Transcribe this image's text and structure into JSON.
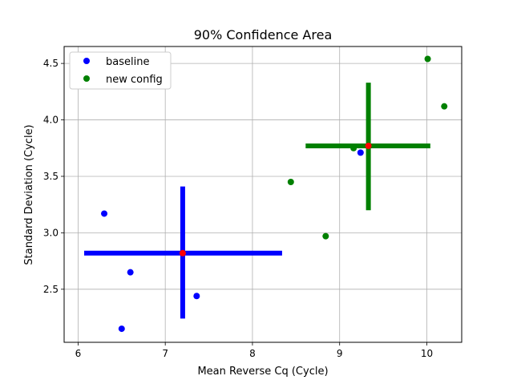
{
  "chart_data": {
    "type": "scatter",
    "title": "90% Confidence Area",
    "xlabel": "Mean Reverse Cq (Cycle)",
    "ylabel": "Standard Deviation (Cycle)",
    "xlim": [
      5.84,
      10.4
    ],
    "ylim": [
      2.03,
      4.65
    ],
    "xticks": [
      6,
      7,
      8,
      9,
      10
    ],
    "yticks": [
      2.5,
      3.0,
      3.5,
      4.0,
      4.5
    ],
    "xtick_labels": [
      "6",
      "7",
      "8",
      "9",
      "10"
    ],
    "ytick_labels": [
      "2.5",
      "3.0",
      "3.5",
      "4.0",
      "4.5"
    ],
    "grid": true,
    "legend_placement": "top-left",
    "series": [
      {
        "name": "baseline",
        "color": "#0000ff",
        "points": [
          {
            "x": 6.3,
            "y": 3.17
          },
          {
            "x": 6.6,
            "y": 2.65
          },
          {
            "x": 6.5,
            "y": 2.15
          },
          {
            "x": 7.36,
            "y": 2.44
          },
          {
            "x": 9.24,
            "y": 3.71
          }
        ],
        "center": {
          "x": 7.2,
          "y": 2.82
        },
        "x_interval": [
          6.07,
          8.34
        ],
        "y_interval": [
          2.24,
          3.41
        ]
      },
      {
        "name": "new config",
        "color": "#008000",
        "points": [
          {
            "x": 8.44,
            "y": 3.45
          },
          {
            "x": 8.84,
            "y": 2.97
          },
          {
            "x": 9.16,
            "y": 3.75
          },
          {
            "x": 10.01,
            "y": 4.54
          },
          {
            "x": 10.2,
            "y": 4.12
          }
        ],
        "center": {
          "x": 9.33,
          "y": 3.77
        },
        "x_interval": [
          8.61,
          10.04
        ],
        "y_interval": [
          3.2,
          4.33
        ]
      }
    ],
    "center_color": "#ff0000"
  }
}
